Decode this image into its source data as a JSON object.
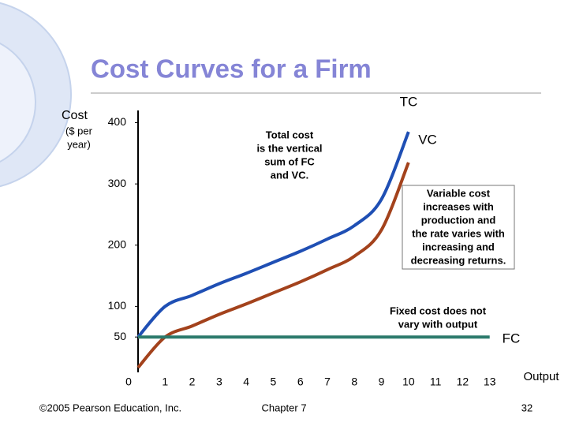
{
  "chart_data": {
    "type": "line",
    "title": "Cost Curves for a Firm",
    "y_label": "Cost",
    "y_label_unit_lines": [
      "($ per",
      "year)"
    ],
    "x_label": "Output",
    "x": [
      0,
      1,
      2,
      3,
      4,
      5,
      6,
      7,
      8,
      9,
      10
    ],
    "series": [
      {
        "name": "TC",
        "color": "#1f4fb4",
        "values": [
          50,
          100,
          118,
          137,
          154,
          172,
          190,
          210,
          232,
          275,
          385
        ]
      },
      {
        "name": "VC",
        "color": "#a3421c",
        "values": [
          0,
          50,
          68,
          87,
          104,
          122,
          140,
          160,
          182,
          225,
          335
        ]
      },
      {
        "name": "FC",
        "color": "#2b7a6c",
        "values": [
          50,
          50,
          50,
          50,
          50,
          50,
          50,
          50,
          50,
          50,
          50,
          50,
          50,
          50
        ],
        "x": [
          0,
          1,
          2,
          3,
          4,
          5,
          6,
          7,
          8,
          9,
          10,
          11,
          12,
          13
        ]
      }
    ],
    "xlim": [
      0,
      14
    ],
    "ylim": [
      0,
      420
    ],
    "xticks": [
      0,
      1,
      2,
      3,
      4,
      5,
      6,
      7,
      8,
      9,
      10,
      11,
      12,
      13
    ],
    "yticks": [
      50,
      100,
      200,
      300,
      400
    ],
    "annotations": [
      {
        "lines": [
          "Total cost",
          "is the vertical",
          "sum of FC",
          "and VC."
        ]
      },
      {
        "lines": [
          "Variable cost",
          "increases with",
          "production and",
          "the rate varies with",
          "increasing and",
          "decreasing returns."
        ]
      },
      {
        "lines": [
          "Fixed cost does not",
          "vary with output"
        ]
      }
    ]
  },
  "footer": {
    "copyright": "©2005 Pearson Education, Inc.",
    "chapter": "Chapter 7",
    "page": "32"
  }
}
